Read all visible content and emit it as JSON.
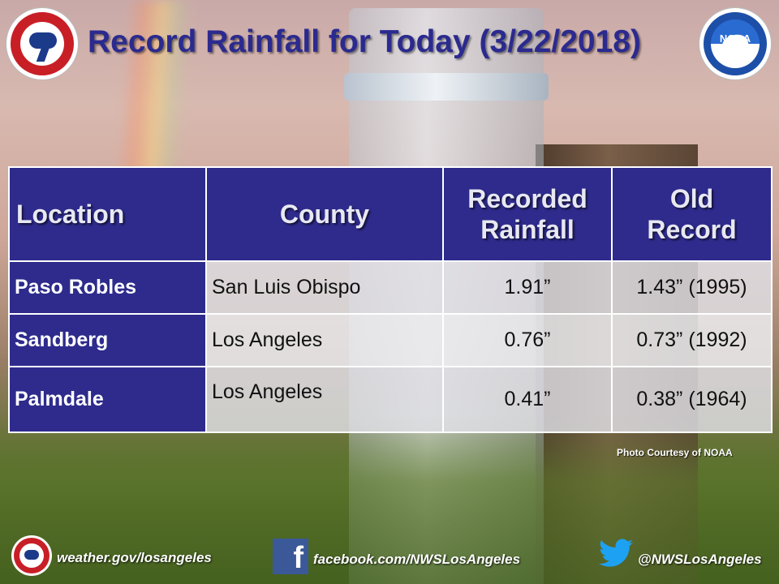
{
  "title": "Record Rainfall for Today (3/22/2018)",
  "logos": {
    "left": "national-weather-service-logo",
    "right": "noaa-logo",
    "right_text": "NOAA"
  },
  "table": {
    "headers": {
      "location": "Location",
      "county": "County",
      "recorded_line1": "Recorded",
      "recorded_line2": "Rainfall",
      "old_line1": "Old",
      "old_line2": "Record"
    },
    "rows": [
      {
        "location": "Paso Robles",
        "county": "San Luis Obispo",
        "recorded": "1.91”",
        "old": "1.43” (1995)"
      },
      {
        "location": "Sandberg",
        "county": "Los Angeles",
        "recorded": "0.76”",
        "old": "0.73” (1992)"
      },
      {
        "location": "Palmdale",
        "county": "Los Angeles",
        "recorded": "0.41”",
        "old": "0.38” (1964)"
      }
    ]
  },
  "credit": "Photo Courtesy  of NOAA",
  "footer": {
    "website": "weather.gov/losangeles",
    "facebook": "facebook.com/NWSLosAngeles",
    "twitter": "@NWSLosAngeles",
    "facebook_icon": "f"
  },
  "colors": {
    "title": "#2b2a8f",
    "table_header": "#2e2b8c",
    "nws_red": "#c81f26",
    "noaa_blue": "#1d4fa8",
    "facebook_blue": "#3b5998",
    "twitter_blue": "#1da1f2"
  }
}
